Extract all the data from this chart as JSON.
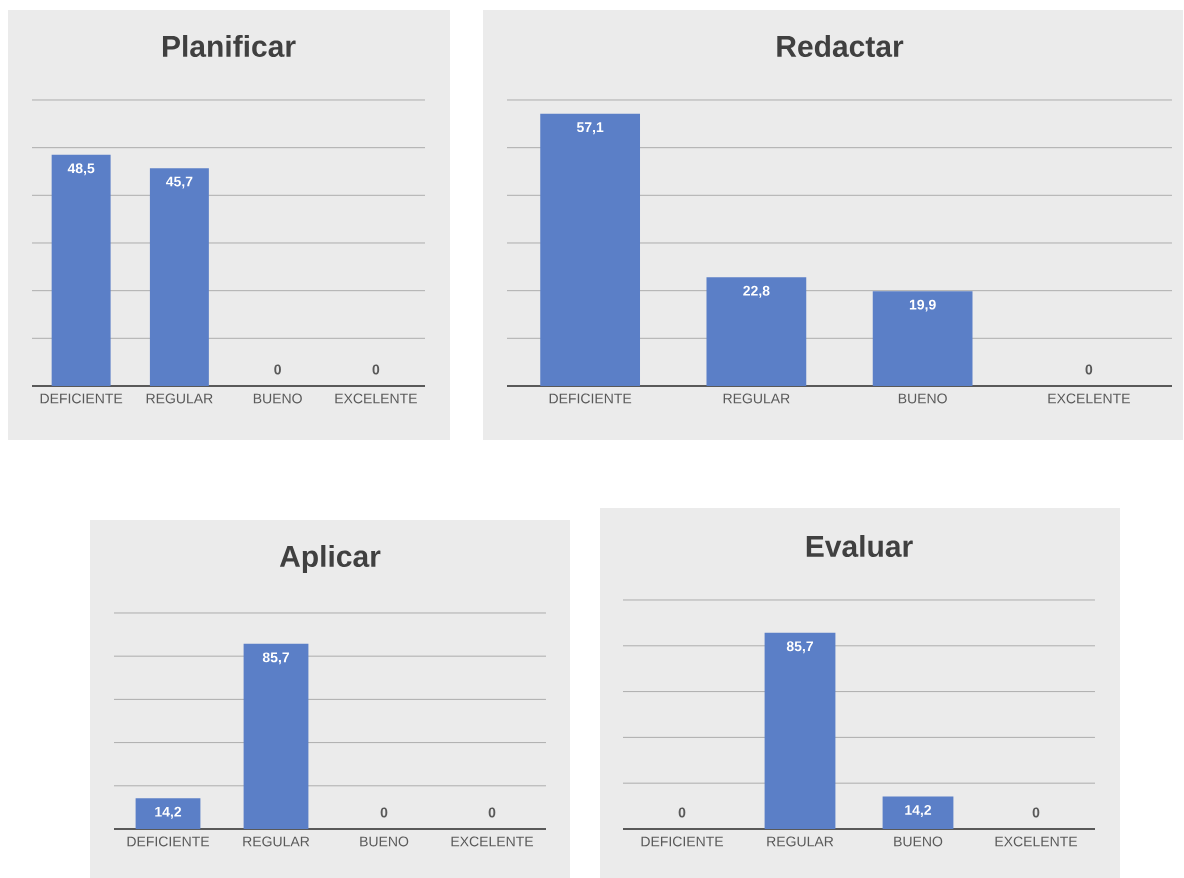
{
  "chart_data": [
    {
      "type": "bar",
      "title": "Planificar",
      "categories": [
        "DEFICIENTE",
        "REGULAR",
        "BUENO",
        "EXCELENTE"
      ],
      "values": [
        48.5,
        45.7,
        0,
        0
      ],
      "value_labels": [
        "48,5",
        "45,7",
        "0",
        "0"
      ],
      "color": "#5b7fc7",
      "ylim": [
        0,
        60
      ],
      "yticks": [
        {
          "value": 10,
          "label": null
        },
        {
          "value": 20,
          "label": null
        },
        {
          "value": 30,
          "label": null
        },
        {
          "value": 40,
          "label": null
        },
        {
          "value": 50,
          "label": null
        },
        {
          "value": 60,
          "label": null
        }
      ],
      "grid": "y",
      "tick_labels": "x"
    },
    {
      "type": "bar",
      "title": "Redactar",
      "categories": [
        "DEFICIENTE",
        "REGULAR",
        "BUENO",
        "EXCELENTE"
      ],
      "values": [
        57.1,
        22.8,
        19.9,
        0
      ],
      "value_labels": [
        "57,1",
        "22,8",
        "19,9",
        "0"
      ],
      "color": "#5b7fc7",
      "ylim": [
        0,
        60
      ],
      "yticks": [
        {
          "value": 10,
          "label": null
        },
        {
          "value": 20,
          "label": null
        },
        {
          "value": 30,
          "label": null
        },
        {
          "value": 40,
          "label": null
        },
        {
          "value": 50,
          "label": null
        },
        {
          "value": 60,
          "label": null
        }
      ],
      "grid": "y",
      "tick_labels": "x"
    },
    {
      "type": "bar",
      "title": "Aplicar",
      "categories": [
        "DEFICIENTE",
        "REGULAR",
        "BUENO",
        "EXCELENTE"
      ],
      "values": [
        14.2,
        85.7,
        0,
        0
      ],
      "value_labels": [
        "14,2",
        "85,7",
        "0",
        "0"
      ],
      "color": "#5b7fc7",
      "ylim": [
        0,
        100
      ],
      "yticks": [
        {
          "value": 20,
          "label": null
        },
        {
          "value": 40,
          "label": null
        },
        {
          "value": 60,
          "label": null
        },
        {
          "value": 80,
          "label": null
        },
        {
          "value": 100,
          "label": null
        }
      ],
      "grid": "y",
      "tick_labels": "x"
    },
    {
      "type": "bar",
      "title": "Evaluar",
      "categories": [
        "DEFICIENTE",
        "REGULAR",
        "BUENO",
        "EXCELENTE"
      ],
      "values": [
        0,
        85.7,
        14.2,
        0
      ],
      "value_labels": [
        "0",
        "85,7",
        "14,2",
        "0"
      ],
      "color": "#5b7fc7",
      "ylim": [
        0,
        100
      ],
      "yticks": [
        {
          "value": 20,
          "label": null
        },
        {
          "value": 40,
          "label": null
        },
        {
          "value": 60,
          "label": null
        },
        {
          "value": 80,
          "label": null
        },
        {
          "value": 100,
          "label": null
        }
      ],
      "grid": "y",
      "tick_labels": "x"
    }
  ]
}
